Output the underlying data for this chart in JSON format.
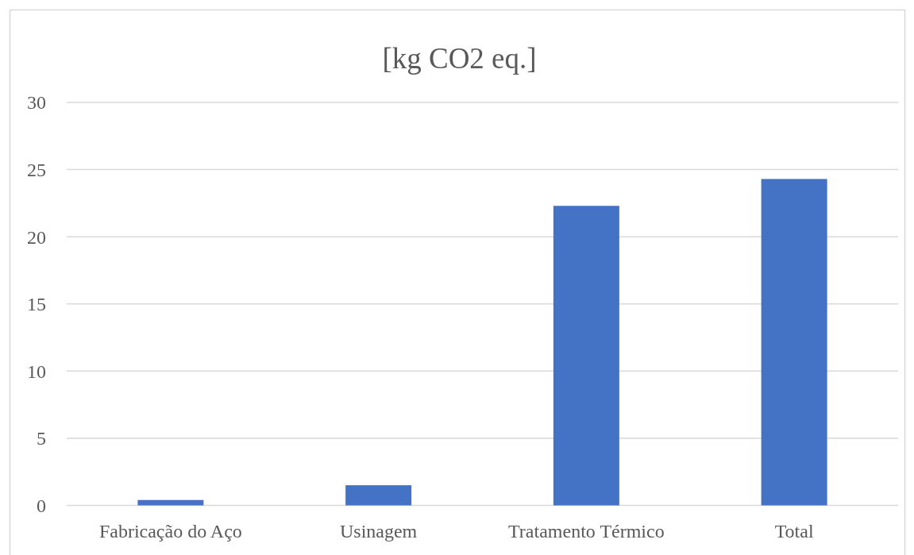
{
  "chart_data": {
    "type": "bar",
    "title": "[kg CO2 eq.]",
    "categories": [
      "Fabricação do Aço",
      "Usinagem",
      "Tratamento Térmico",
      "Total"
    ],
    "values": [
      0.4,
      1.5,
      22.3,
      24.3
    ],
    "color": "#4472c4",
    "ylim": [
      0,
      30
    ],
    "yticks": [
      0,
      5,
      10,
      15,
      20,
      25,
      30
    ],
    "grid": "y"
  }
}
